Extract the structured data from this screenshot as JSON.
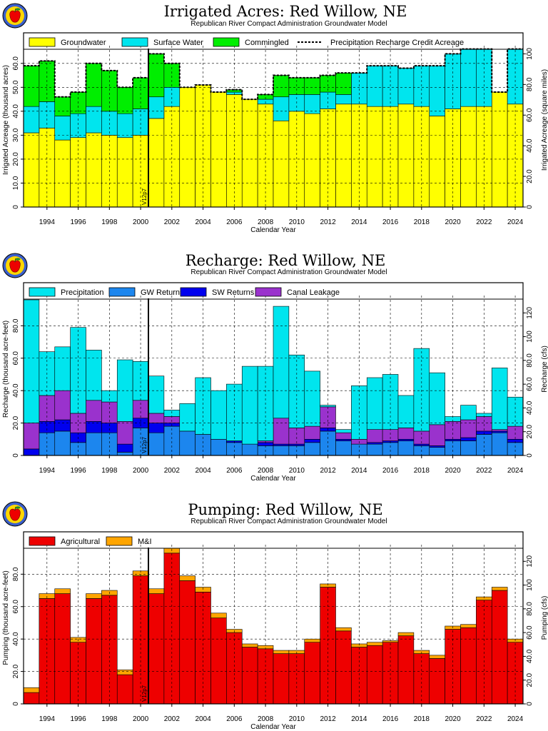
{
  "colors": {
    "groundwater": "#ffff00",
    "surface_water": "#00e5ee",
    "commingled": "#00ee00",
    "precipitation": "#00e5ee",
    "gw_returns": "#1c86ee",
    "sw_returns": "#0000ee",
    "canal_leakage": "#9a32cd",
    "agricultural": "#ee0000",
    "mi": "#ffa500"
  },
  "logo_icon": "apple-logo-icon",
  "chart_data": [
    {
      "type": "bar",
      "stacked": true,
      "title": "Irrigated Acres: Red Willow, NE",
      "subtitle": "Republican River Compact Administration Groundwater Model",
      "xlabel": "Calendar Year",
      "ylabel": "Irrigated Acreage (thousand acres)",
      "y2label": "Irrigated Acreage (square miles)",
      "x": [
        1993,
        1994,
        1995,
        1996,
        1997,
        1998,
        1999,
        2000,
        2001,
        2002,
        2003,
        2004,
        2005,
        2006,
        2007,
        2008,
        2009,
        2010,
        2011,
        2012,
        2013,
        2014,
        2015,
        2016,
        2017,
        2018,
        2019,
        2020,
        2021,
        2022,
        2023,
        2024
      ],
      "xticks": [
        "1994",
        "1996",
        "1998",
        "2000",
        "2002",
        "2004",
        "2006",
        "2008",
        "2010",
        "2012",
        "2014",
        "2016",
        "2018",
        "2020",
        "2022",
        "2024"
      ],
      "ylim": [
        0,
        65
      ],
      "yticks": [
        "0",
        "10.0",
        "20.0",
        "30.0",
        "40.0",
        "50.0",
        "60.0"
      ],
      "y2ticks": [
        "0",
        "20.0",
        "40.0",
        "60.0",
        "80.0",
        "100"
      ],
      "grid": true,
      "legend_position": "top",
      "series": [
        {
          "name": "Groundwater",
          "color_key": "groundwater",
          "values": [
            31,
            33,
            28,
            29,
            31,
            30,
            29,
            30,
            37,
            42,
            50,
            51,
            48,
            47,
            45,
            43,
            36,
            40,
            39,
            41,
            43,
            43,
            42,
            42,
            43,
            42,
            38,
            41,
            42,
            42,
            48,
            43
          ]
        },
        {
          "name": "Surface Water",
          "color_key": "surface_water",
          "values": [
            11,
            11,
            10,
            10,
            11,
            10,
            10,
            11,
            9,
            8,
            0,
            0,
            0,
            1,
            0,
            2,
            10,
            7,
            8,
            7,
            4,
            13,
            17,
            17,
            15,
            17,
            21,
            23,
            24,
            24,
            0,
            23
          ]
        },
        {
          "name": "Commingled",
          "color_key": "commingled",
          "values": [
            17,
            17,
            8,
            9,
            18,
            17,
            11,
            13,
            18,
            10,
            0,
            0,
            0,
            1,
            0,
            2,
            9,
            7,
            7,
            7,
            9,
            0,
            0,
            0,
            0,
            0,
            0,
            0,
            0,
            0,
            0,
            0
          ]
        }
      ],
      "precip_credit": {
        "name": "Precipitation Recharge Credit Acreage",
        "values": [
          59,
          61,
          46,
          48,
          60,
          57,
          50,
          54,
          64,
          60,
          50,
          51,
          48,
          49,
          45,
          47,
          55,
          54,
          54,
          55,
          56,
          56,
          59,
          59,
          58,
          59,
          59,
          64,
          66,
          66,
          48,
          66
        ]
      },
      "marker": {
        "year": 2000.5,
        "label": "V12p7"
      }
    },
    {
      "type": "bar",
      "stacked": true,
      "title": "Recharge: Red Willow, NE",
      "subtitle": "Republican River Compact Administration Groundwater Model",
      "xlabel": "Calendar Year",
      "ylabel": "Recharge (thousand acre-feet)",
      "y2label": "Recharge (cfs)",
      "x": [
        1993,
        1994,
        1995,
        1996,
        1997,
        1998,
        1999,
        2000,
        2001,
        2002,
        2003,
        2004,
        2005,
        2006,
        2007,
        2008,
        2009,
        2010,
        2011,
        2012,
        2013,
        2014,
        2015,
        2016,
        2017,
        2018,
        2019,
        2020,
        2021,
        2022,
        2023,
        2024
      ],
      "xticks": [
        "1994",
        "1996",
        "1998",
        "2000",
        "2002",
        "2004",
        "2006",
        "2008",
        "2010",
        "2012",
        "2014",
        "2016",
        "2018",
        "2020",
        "2022",
        "2024"
      ],
      "ylim": [
        0,
        96
      ],
      "yticks": [
        "0",
        "20.0",
        "40.0",
        "60.0",
        "80.0"
      ],
      "y2ticks": [
        "0",
        "20.0",
        "40.0",
        "60.0",
        "80.0",
        "100",
        "120"
      ],
      "grid": true,
      "legend_position": "top",
      "series": [
        {
          "name": "GW Returns",
          "color_key": "gw_returns",
          "values": [
            0,
            14,
            15,
            8,
            14,
            14,
            2,
            17,
            14,
            18,
            15,
            13,
            10,
            8,
            7,
            6,
            6,
            6,
            8,
            15,
            9,
            7,
            7,
            8,
            9,
            6,
            5,
            9,
            9,
            13,
            14,
            8
          ]
        },
        {
          "name": "SW Returns",
          "color_key": "sw_returns",
          "values": [
            4,
            7,
            7,
            6,
            7,
            6,
            5,
            6,
            6,
            2,
            0,
            0,
            0,
            1,
            0,
            2,
            1,
            1,
            2,
            2,
            1,
            0,
            1,
            1,
            1,
            1,
            1,
            1,
            2,
            2,
            1,
            2
          ]
        },
        {
          "name": "Canal Leakage",
          "color_key": "canal_leakage",
          "values": [
            16,
            16,
            18,
            12,
            13,
            13,
            14,
            11,
            6,
            4,
            0,
            0,
            0,
            0,
            0,
            1,
            16,
            10,
            8,
            13,
            4,
            3,
            8,
            7,
            7,
            8,
            13,
            11,
            11,
            9,
            1,
            8
          ]
        },
        {
          "name": "Precipitation",
          "color_key": "precipitation",
          "values": [
            76,
            27,
            27,
            53,
            31,
            7,
            38,
            24,
            23,
            4,
            17,
            35,
            30,
            35,
            48,
            46,
            69,
            45,
            34,
            1,
            2,
            33,
            32,
            34,
            20,
            51,
            32,
            3,
            9,
            2,
            38,
            18
          ]
        }
      ],
      "marker": {
        "year": 2000.5,
        "label": "V12p7"
      }
    },
    {
      "type": "bar",
      "stacked": true,
      "title": "Pumping: Red Willow, NE",
      "subtitle": "Republican River Compact Administration Groundwater Model",
      "xlabel": "Calendar Year",
      "ylabel": "Pumping (thousand acre-feet)",
      "y2label": "Pumping (cfs)",
      "x": [
        1993,
        1994,
        1995,
        1996,
        1997,
        1998,
        1999,
        2000,
        2001,
        2002,
        2003,
        2004,
        2005,
        2006,
        2007,
        2008,
        2009,
        2010,
        2011,
        2012,
        2013,
        2014,
        2015,
        2016,
        2017,
        2018,
        2019,
        2020,
        2021,
        2022,
        2023,
        2024
      ],
      "xticks": [
        "1994",
        "1996",
        "1998",
        "2000",
        "2002",
        "2004",
        "2006",
        "2008",
        "2010",
        "2012",
        "2014",
        "2016",
        "2018",
        "2020",
        "2022",
        "2024"
      ],
      "ylim": [
        0,
        96
      ],
      "yticks": [
        "0",
        "20.0",
        "40.0",
        "60.0",
        "80.0"
      ],
      "y2ticks": [
        "0",
        "20.0",
        "40.0",
        "60.0",
        "80.0",
        "100",
        "120"
      ],
      "grid": true,
      "legend_position": "top",
      "series": [
        {
          "name": "Agricultural",
          "color_key": "agricultural",
          "values": [
            7,
            65,
            68,
            38,
            65,
            67,
            18,
            79,
            68,
            93,
            76,
            69,
            53,
            44,
            35,
            34,
            31,
            31,
            38,
            72,
            45,
            35,
            36,
            38,
            42,
            31,
            28,
            46,
            47,
            64,
            70,
            38
          ]
        },
        {
          "name": "M&I",
          "color_key": "mi",
          "values": [
            3,
            3,
            3,
            3,
            3,
            3,
            3,
            3,
            3,
            3,
            3,
            3,
            3,
            2,
            2,
            2,
            2,
            2,
            2,
            2,
            2,
            2,
            2,
            1,
            2,
            2,
            2,
            2,
            2,
            2,
            2,
            2
          ]
        }
      ],
      "marker": {
        "year": 2000.5,
        "label": "V12p7"
      }
    }
  ]
}
